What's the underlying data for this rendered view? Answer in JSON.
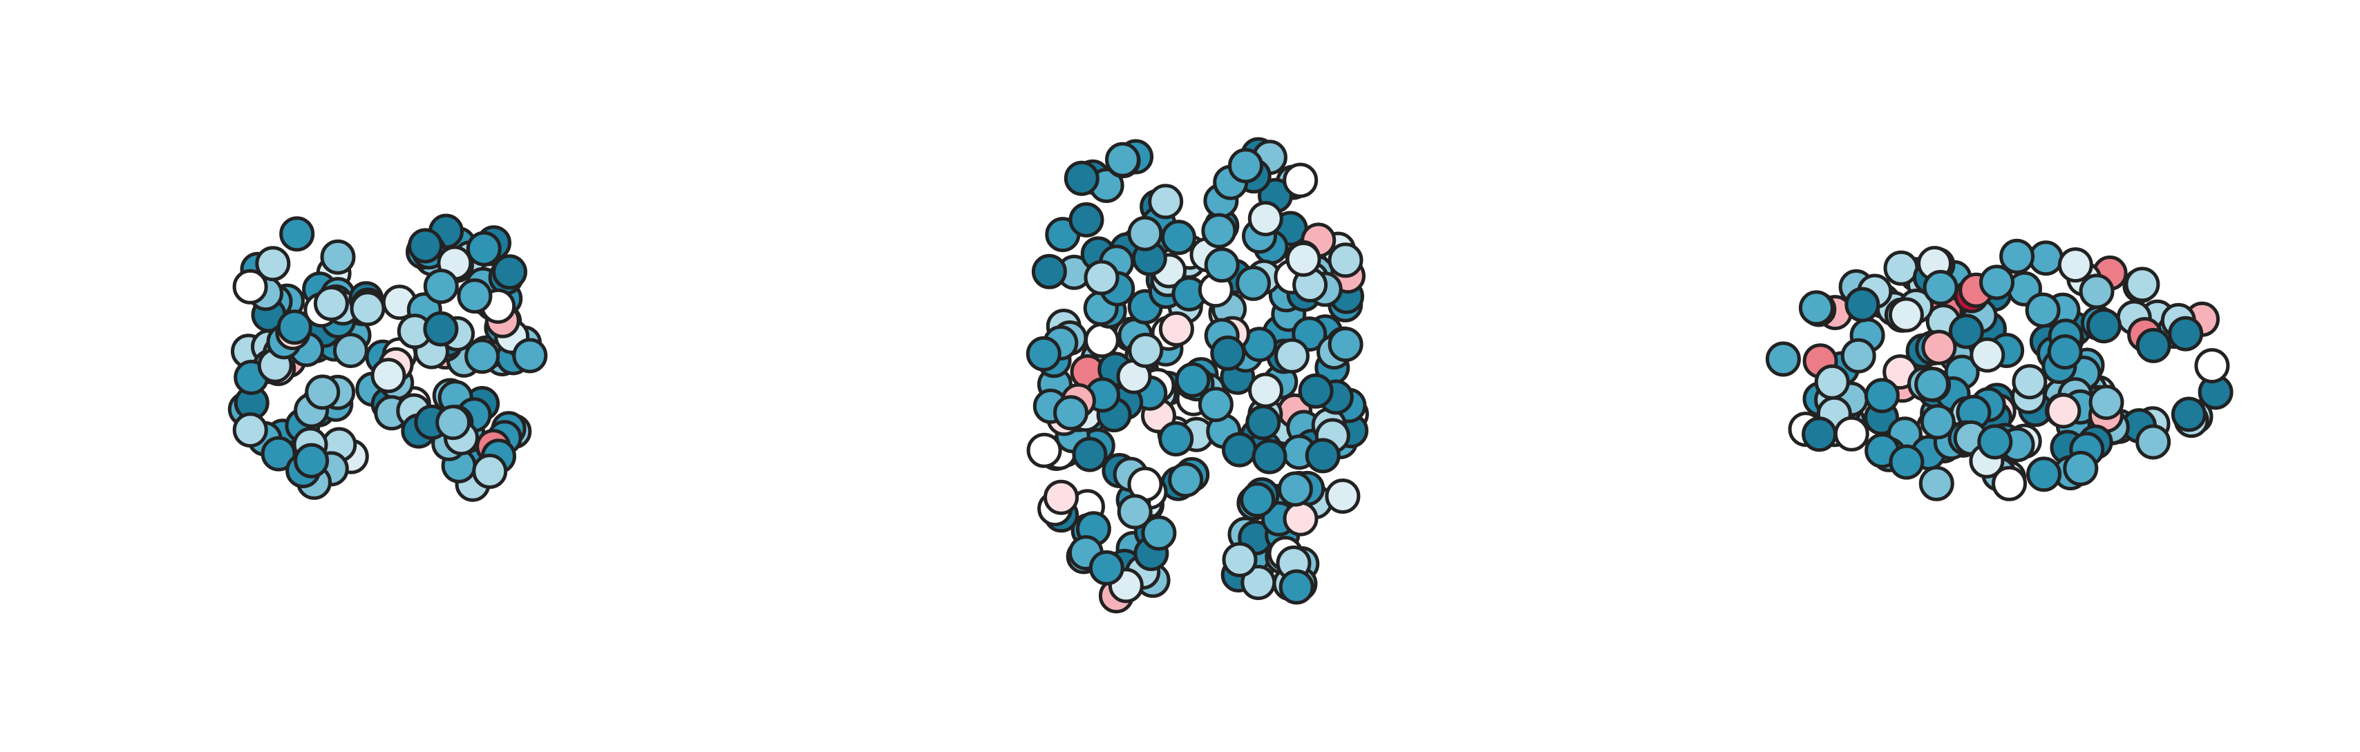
{
  "node_colors": [
    "#1d7a99",
    "#2f93b3",
    "#4eaac6",
    "#7fc1d6",
    "#add8e6",
    "#dceef3",
    "#ffffff",
    "#fde0e3",
    "#f7b2b9",
    "#ec7d88",
    "#c0103a"
  ]
}
